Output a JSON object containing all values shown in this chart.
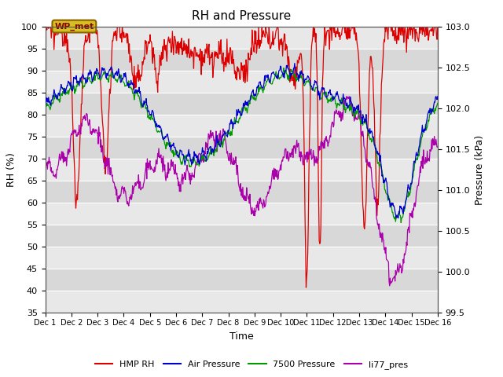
{
  "title": "RH and Pressure",
  "xlabel": "Time",
  "ylabel_left": "RH (%)",
  "ylabel_right": "Pressure (kPa)",
  "ylim_left": [
    35,
    100
  ],
  "ylim_right": [
    99.5,
    103.0
  ],
  "yticks_left": [
    35,
    40,
    45,
    50,
    55,
    60,
    65,
    70,
    75,
    80,
    85,
    90,
    95,
    100
  ],
  "yticks_right": [
    99.5,
    100.0,
    100.5,
    101.0,
    101.5,
    102.0,
    102.5,
    103.0
  ],
  "n_points": 720,
  "annotation_text": "WP_met",
  "annotation_bg": "#d4c020",
  "annotation_border": "#8b6000",
  "annotation_text_color": "#8b0000",
  "colors": {
    "HMP RH": "#dd0000",
    "Air Pressure": "#0000cc",
    "7500 Pressure": "#009900",
    "li77_pres": "#aa00aa"
  },
  "legend_labels": [
    "HMP RH",
    "Air Pressure",
    "7500 Pressure",
    "li77_pres"
  ],
  "bg_color": "#e0e0e0",
  "band_colors": [
    "#e8e8e8",
    "#d8d8d8"
  ]
}
